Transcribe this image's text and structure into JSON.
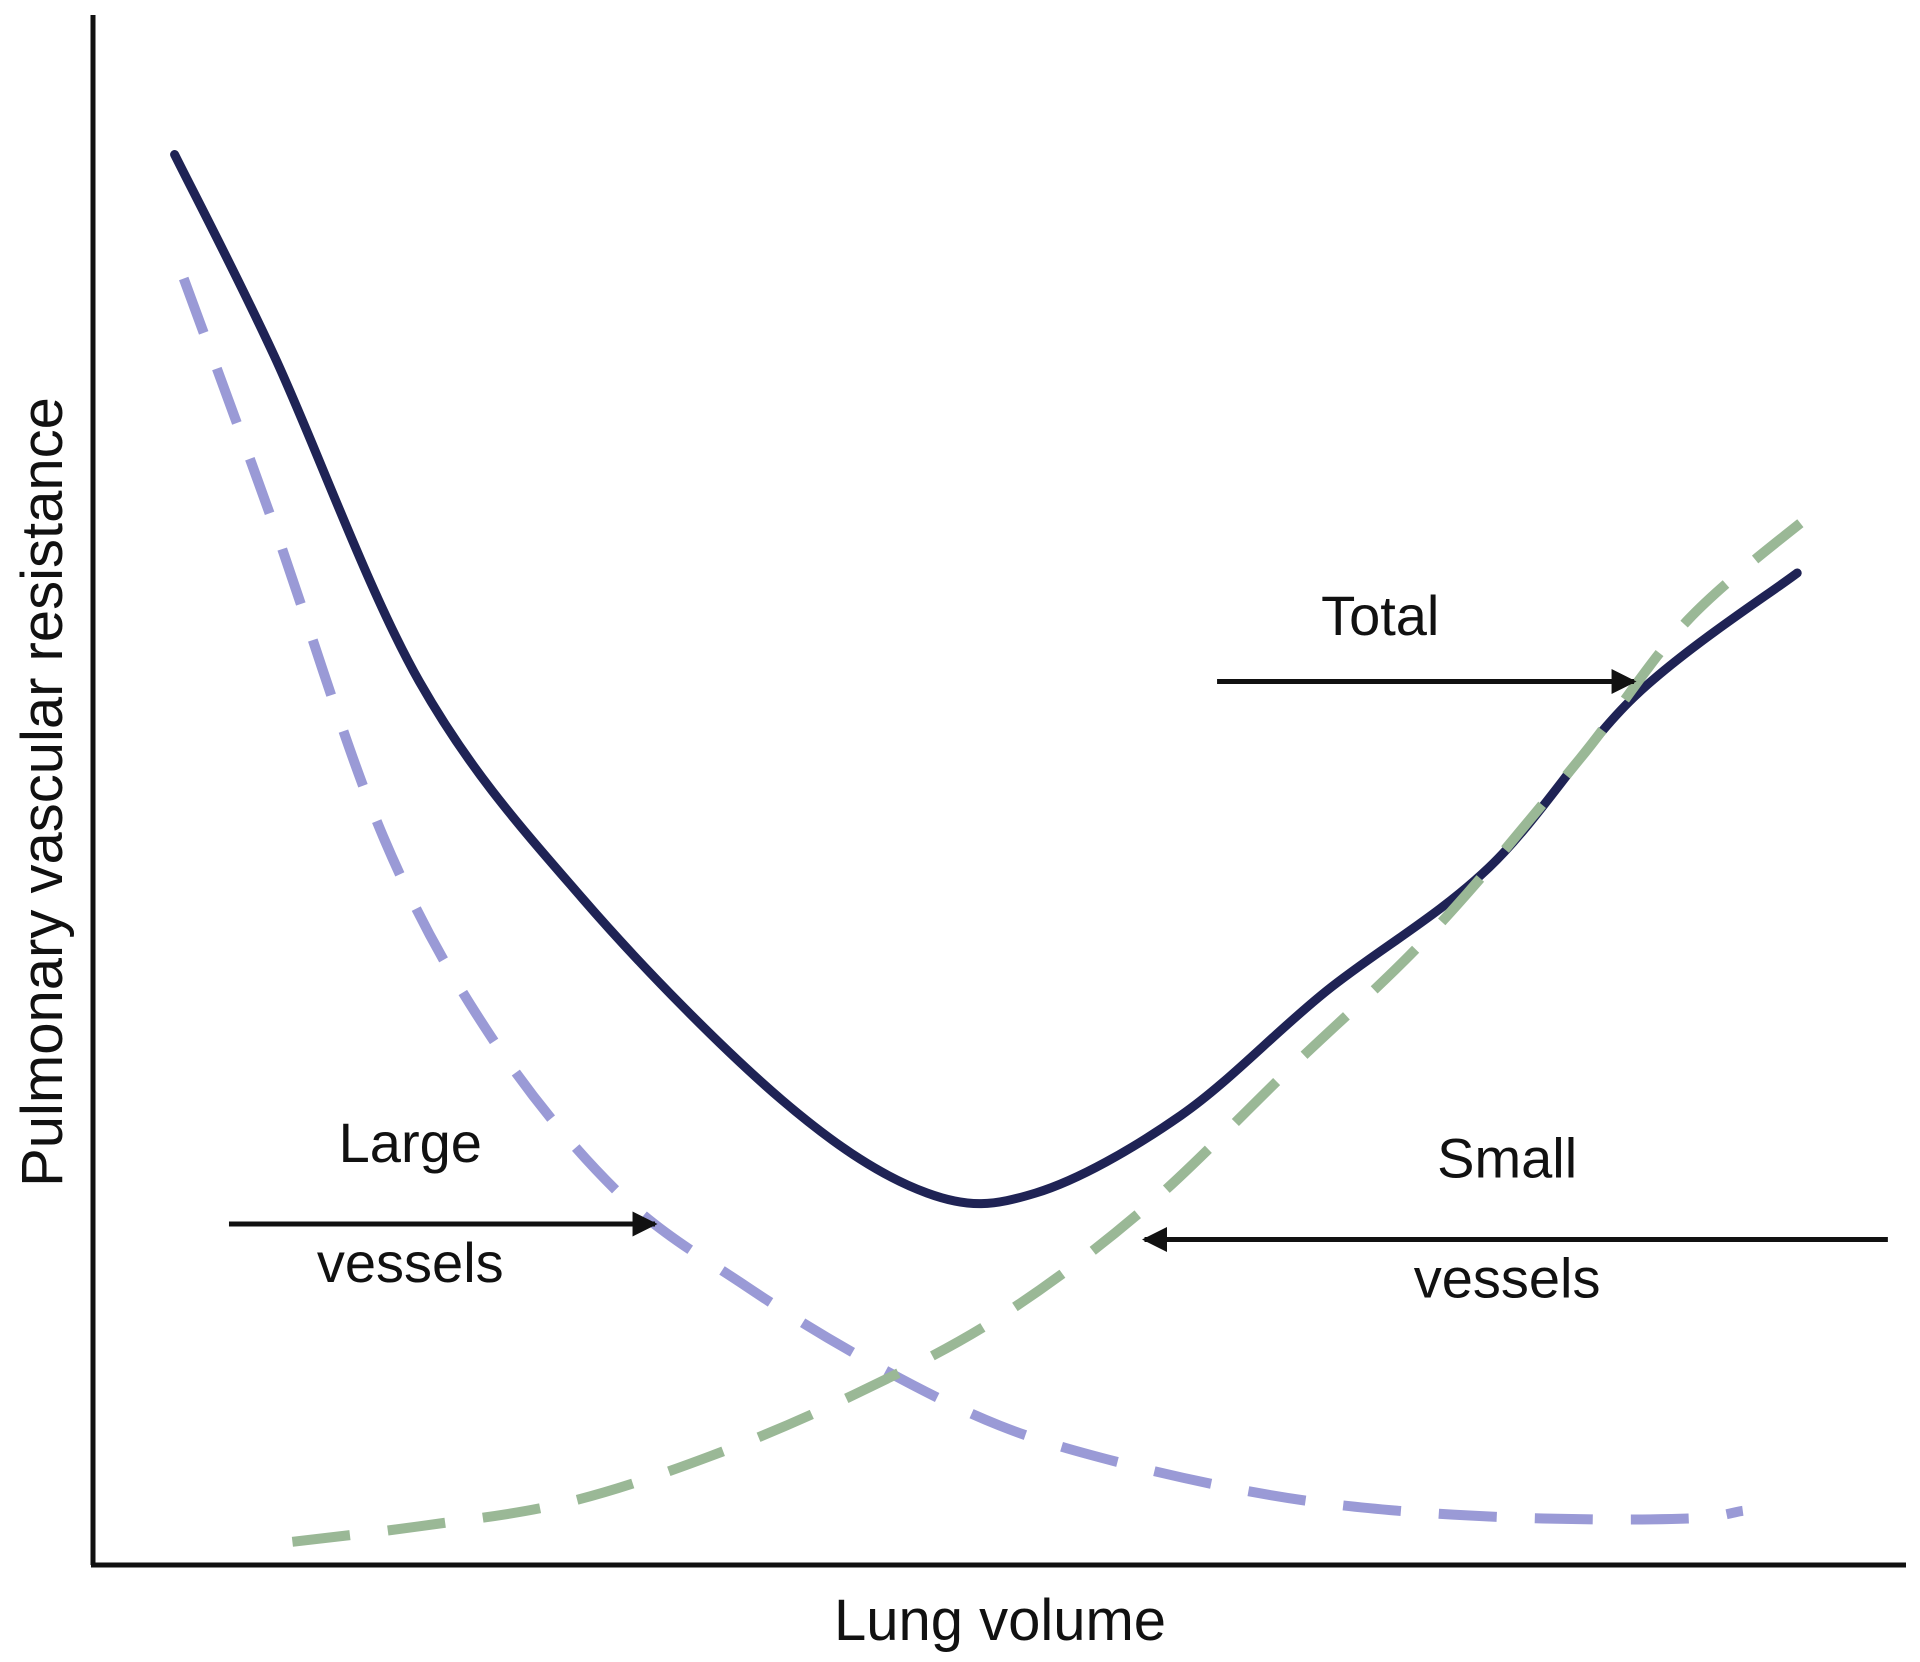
{
  "chart_data": {
    "type": "line",
    "title": "",
    "xlabel": "Lung volume",
    "ylabel": "Pulmonary vascular resistance",
    "xlim": [
      0,
      100
    ],
    "ylim": [
      0,
      100
    ],
    "grid": false,
    "axes_ticks": false,
    "series": [
      {
        "name": "Total",
        "style": "solid",
        "color": "#1f2355",
        "x": [
          4.5,
          10,
          18,
          27,
          38,
          46,
          52,
          60,
          68,
          77,
          85,
          94
        ],
        "y": [
          91,
          78,
          57,
          43,
          30,
          24,
          24,
          29,
          37,
          45,
          56,
          64
        ]
      },
      {
        "name": "Large vessels",
        "style": "dashed",
        "color": "#9a9ad6",
        "x": [
          5,
          10,
          16,
          22,
          29,
          36,
          43,
          50,
          57,
          65,
          72,
          80,
          88,
          91
        ],
        "y": [
          83,
          67,
          47,
          34,
          24,
          18,
          13,
          9,
          6.5,
          4.5,
          3.5,
          3,
          3,
          3.5
        ]
      },
      {
        "name": "Small vessels",
        "style": "dashed",
        "color": "#9ab896",
        "x": [
          11,
          18,
          26,
          34,
          42,
          50,
          58,
          66,
          74,
          82,
          88,
          95
        ],
        "y": [
          1.5,
          2.5,
          4,
          7,
          11,
          16,
          23,
          32,
          41,
          52,
          61,
          68
        ]
      }
    ],
    "annotations": [
      {
        "id": "total",
        "lines": [
          "Total"
        ],
        "series": "Total",
        "arrow_to": [
          85,
          57
        ],
        "arrow_from": [
          62,
          57
        ],
        "text_at": [
          71,
          60
        ]
      },
      {
        "id": "large",
        "lines": [
          "Large",
          "vessels"
        ],
        "series": "Large vessels",
        "arrow_to": [
          31,
          22
        ],
        "arrow_from": [
          7.5,
          22
        ],
        "text_at": [
          17.5,
          26
        ]
      },
      {
        "id": "small",
        "lines": [
          "Small",
          "vessels"
        ],
        "series": "Small vessels",
        "arrow_to": [
          58,
          21
        ],
        "arrow_from": [
          99,
          21
        ],
        "text_at": [
          78,
          25
        ]
      }
    ]
  }
}
